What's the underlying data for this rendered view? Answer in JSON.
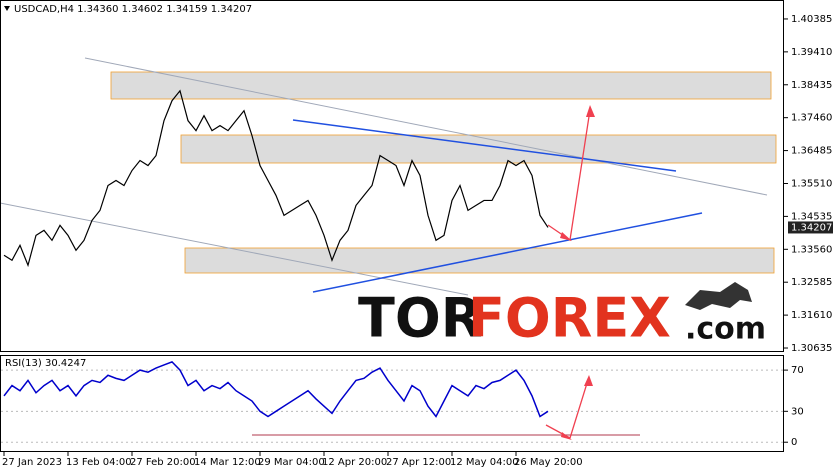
{
  "chart_data": [
    {
      "type": "line",
      "title": "USDCAD,H4  1.34360 1.34602 1.34159 1.34207",
      "color": "#000000",
      "x": [
        "27 Jan 2023",
        null,
        null,
        null,
        null,
        null,
        null,
        null,
        "13 Feb 04:00",
        null,
        null,
        null,
        null,
        null,
        null,
        null,
        "27 Feb 20:00",
        null,
        null,
        null,
        null,
        null,
        null,
        null,
        "14 Mar 12:00",
        null,
        null,
        null,
        null,
        null,
        null,
        null,
        "29 Mar 04:00",
        null,
        null,
        null,
        null,
        null,
        null,
        null,
        "12 Apr 20:00",
        null,
        null,
        null,
        null,
        null,
        null,
        null,
        "27 Apr 12:00",
        null,
        null,
        null,
        null,
        null,
        null,
        null,
        "12 May 04:00",
        null,
        null,
        null,
        null,
        null,
        null,
        null,
        "26 May 20:00",
        null,
        null,
        null,
        null
      ],
      "values": [
        1.33383,
        1.33235,
        1.33679,
        1.33088,
        1.33974,
        1.34122,
        1.33826,
        1.34269,
        1.33974,
        1.33531,
        1.33826,
        1.34417,
        1.34713,
        1.35451,
        1.35599,
        1.35451,
        1.35894,
        1.3619,
        1.36042,
        1.36337,
        1.37371,
        1.37962,
        1.38258,
        1.37371,
        1.37076,
        1.37519,
        1.37076,
        1.37224,
        1.37076,
        1.37371,
        1.37667,
        1.36928,
        1.36042,
        1.35599,
        1.35156,
        1.34565,
        1.34713,
        1.34861,
        1.35008,
        1.34565,
        1.33974,
        1.33235,
        1.33826,
        1.34122,
        1.34861,
        1.35156,
        1.35451,
        1.36337,
        1.3619,
        1.36042,
        1.35451,
        1.3619,
        1.35747,
        1.34565,
        1.33826,
        1.33974,
        1.35008,
        1.35451,
        1.34713,
        1.34861,
        1.35008,
        1.35008,
        1.35451,
        1.3619,
        1.36042,
        1.3619,
        1.35747,
        1.34565,
        1.34207
      ],
      "ylim": [
        1.30517,
        1.40917
      ],
      "yticks": [
        1.40385,
        {
          "value": 1.3941,
          "label": "1.39410"
        },
        1.38435,
        {
          "value": 1.3746,
          "label": "1.37460"
        },
        1.36485,
        {
          "value": 1.3551,
          "label": "1.35510"
        },
        1.34535,
        {
          "value": 1.3356,
          "label": "1.33560"
        },
        1.32585,
        {
          "value": 1.3161,
          "label": "1.31610"
        },
        1.30635
      ],
      "current_price_label": "1.34207"
    },
    {
      "type": "line",
      "title": "RSI(13) 30.4247",
      "color": "#0000cc",
      "values": [
        45,
        55,
        50,
        60,
        48,
        55,
        60,
        50,
        55,
        45,
        55,
        60,
        58,
        65,
        62,
        60,
        65,
        70,
        68,
        72,
        75,
        78,
        70,
        55,
        60,
        50,
        55,
        52,
        58,
        50,
        45,
        40,
        30,
        25,
        30,
        35,
        40,
        45,
        50,
        42,
        35,
        28,
        40,
        50,
        60,
        62,
        68,
        72,
        60,
        50,
        40,
        55,
        50,
        35,
        25,
        40,
        55,
        50,
        45,
        55,
        52,
        58,
        60,
        65,
        70,
        60,
        45,
        25,
        30
      ],
      "ylim": [
        -9.5,
        83.7
      ],
      "yticks": [
        70,
        30,
        0
      ]
    }
  ],
  "watermark": {
    "parts": [
      "TOR",
      "FOREX",
      ".com"
    ]
  }
}
